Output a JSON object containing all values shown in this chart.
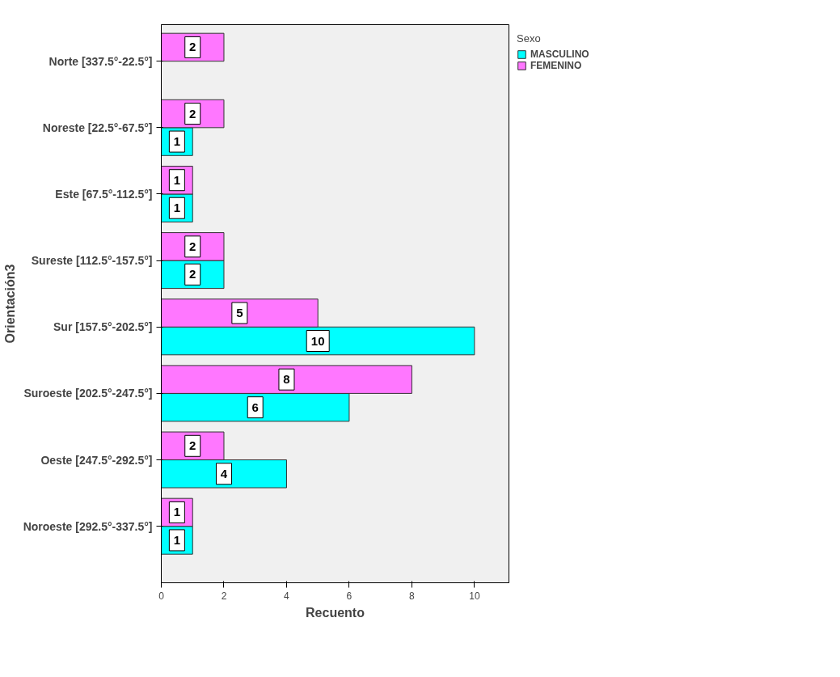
{
  "chart_data": {
    "type": "bar",
    "orientation": "horizontal",
    "xlabel": "Recuento",
    "ylabel": "Orientación3",
    "legend_title": "Sexo",
    "categories": [
      "Norte [337.5°-22.5°]",
      "Noreste [22.5°-67.5°]",
      "Este [67.5°-112.5°]",
      "Sureste [112.5°-157.5°]",
      "Sur [157.5°-202.5°]",
      "Suroeste [202.5°-247.5°]",
      "Oeste [247.5°-292.5°]",
      "Noroeste [292.5°-337.5°]"
    ],
    "series": [
      {
        "name": "MASCULINO",
        "color": "#00ffff",
        "values": [
          null,
          1,
          1,
          2,
          10,
          6,
          4,
          1
        ]
      },
      {
        "name": "FEMENINO",
        "color": "#ff77ff",
        "values": [
          2,
          2,
          1,
          2,
          5,
          8,
          2,
          1
        ]
      }
    ],
    "xlim": [
      0,
      11.1
    ],
    "xticks": [
      0,
      2,
      4,
      6,
      8,
      10
    ],
    "grid": false,
    "legend": "top right",
    "data_labels": true
  }
}
